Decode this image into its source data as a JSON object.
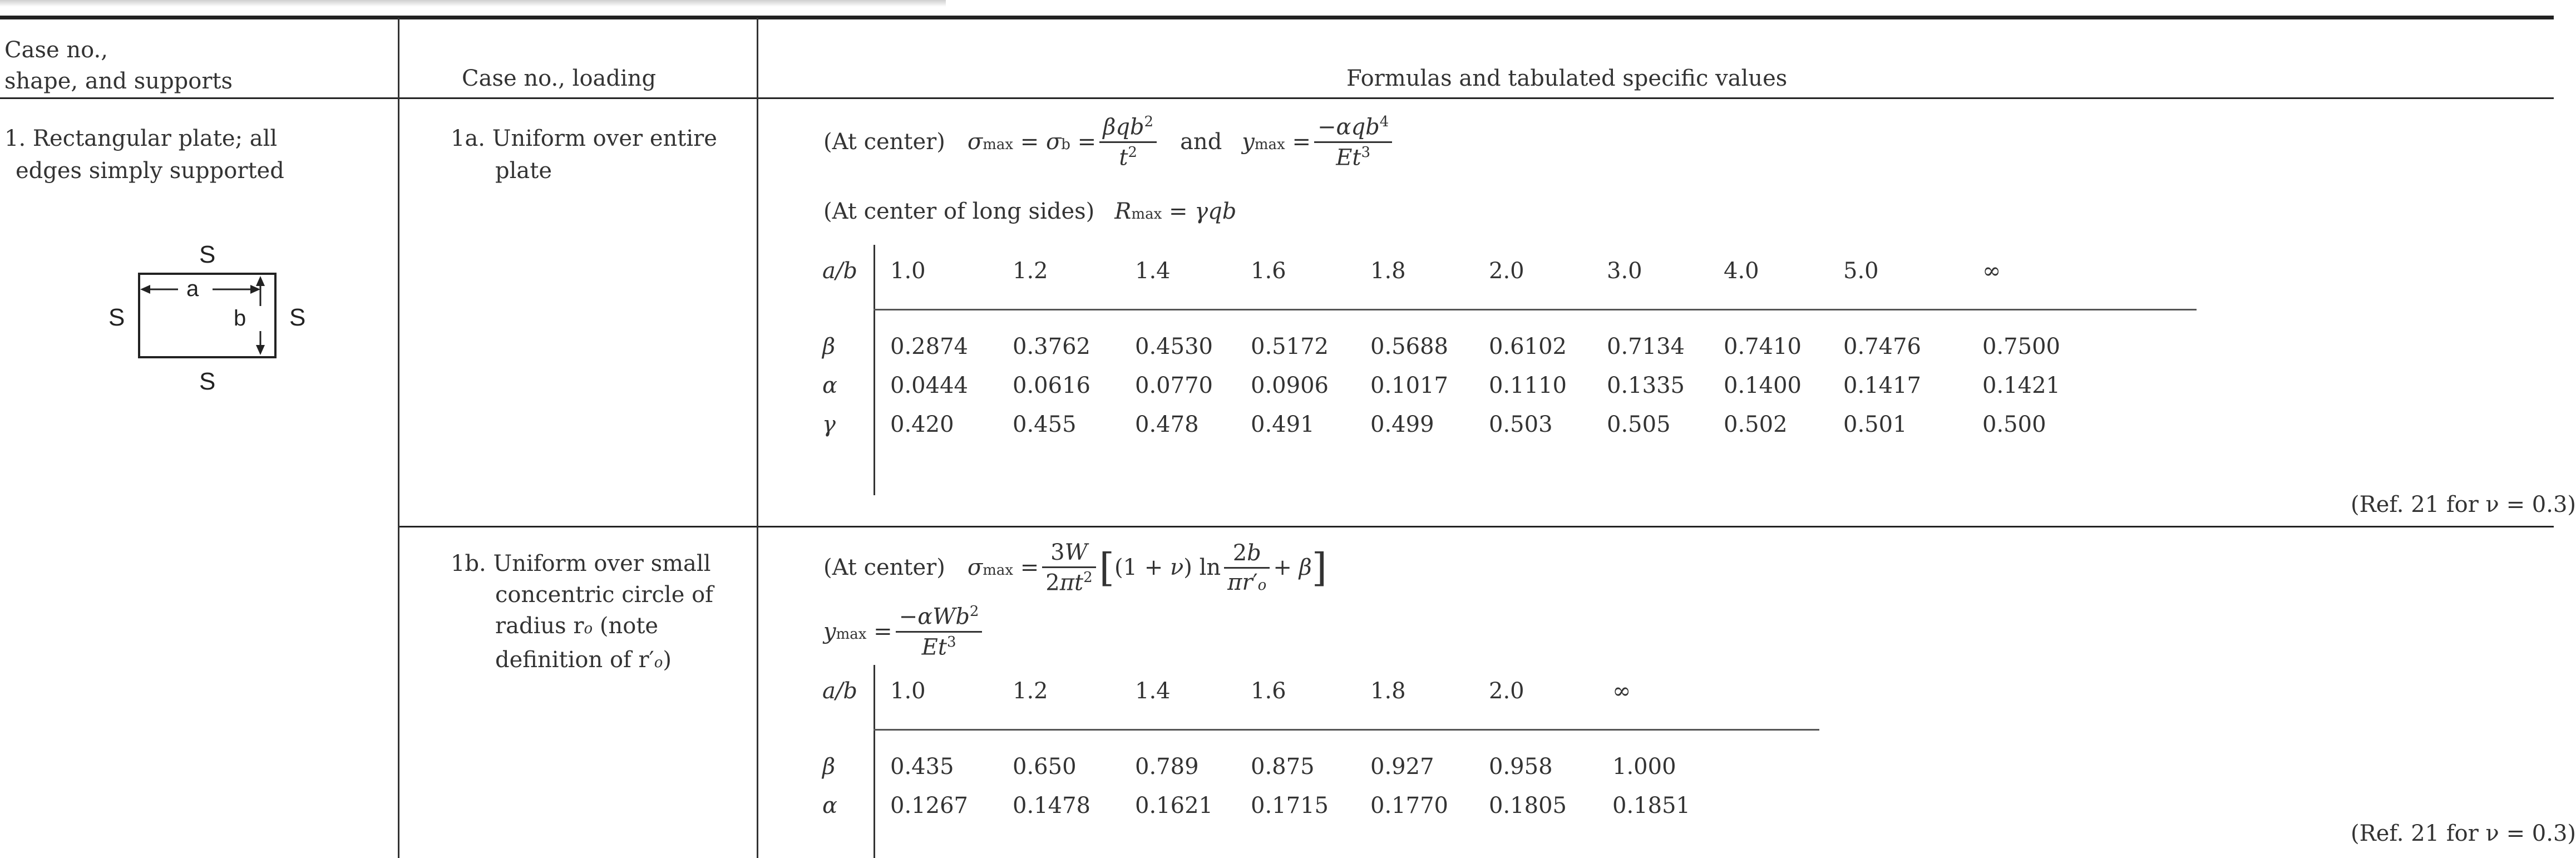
{
  "headers": {
    "col1": [
      "Case no.,",
      "shape, and supports"
    ],
    "col2": "Case no., loading",
    "col3": "Formulas and tabulated specific values"
  },
  "case1": {
    "title": [
      "1. Rectangular plate; all",
      "edges simply supported"
    ],
    "diagram": {
      "top": "S",
      "bottom": "S",
      "left": "S",
      "right": "S",
      "a": "a",
      "b": "b"
    }
  },
  "case1a": {
    "loading": [
      "1a. Uniform over entire",
      "plate"
    ],
    "formula1_prefix": "(At center)",
    "formula1_and": "and",
    "formula2": "(At center of long sides)",
    "table": {
      "header_label": "a/b",
      "cols": [
        "1.0",
        "1.2",
        "1.4",
        "1.6",
        "1.8",
        "2.0",
        "3.0",
        "4.0",
        "5.0",
        "∞"
      ],
      "rows": [
        {
          "label": "β",
          "values": [
            "0.2874",
            "0.3762",
            "0.4530",
            "0.5172",
            "0.5688",
            "0.6102",
            "0.7134",
            "0.7410",
            "0.7476",
            "0.7500"
          ]
        },
        {
          "label": "α",
          "values": [
            "0.0444",
            "0.0616",
            "0.0770",
            "0.0906",
            "0.1017",
            "0.1110",
            "0.1335",
            "0.1400",
            "0.1417",
            "0.1421"
          ]
        },
        {
          "label": "γ",
          "values": [
            "0.420",
            "0.455",
            "0.478",
            "0.491",
            "0.499",
            "0.503",
            "0.505",
            "0.502",
            "0.501",
            "0.500"
          ]
        }
      ]
    },
    "ref": "(Ref. 21 for ν = 0.3)"
  },
  "case1b": {
    "loading": [
      "1b. Uniform over small",
      "concentric circle of",
      "radius r",
      "definition of r′"
    ],
    "formula1_prefix": "(At center)",
    "table": {
      "header_label": "a/b",
      "cols": [
        "1.0",
        "1.2",
        "1.4",
        "1.6",
        "1.8",
        "2.0",
        "∞"
      ],
      "rows": [
        {
          "label": "β",
          "values": [
            "0.435",
            "0.650",
            "0.789",
            "0.875",
            "0.927",
            "0.958",
            "1.000"
          ]
        },
        {
          "label": "α",
          "values": [
            "0.1267",
            "0.1478",
            "0.1621",
            "0.1715",
            "0.1770",
            "0.1805",
            "0.1851"
          ]
        }
      ]
    },
    "ref": "(Ref. 21 for ν = 0.3)"
  }
}
